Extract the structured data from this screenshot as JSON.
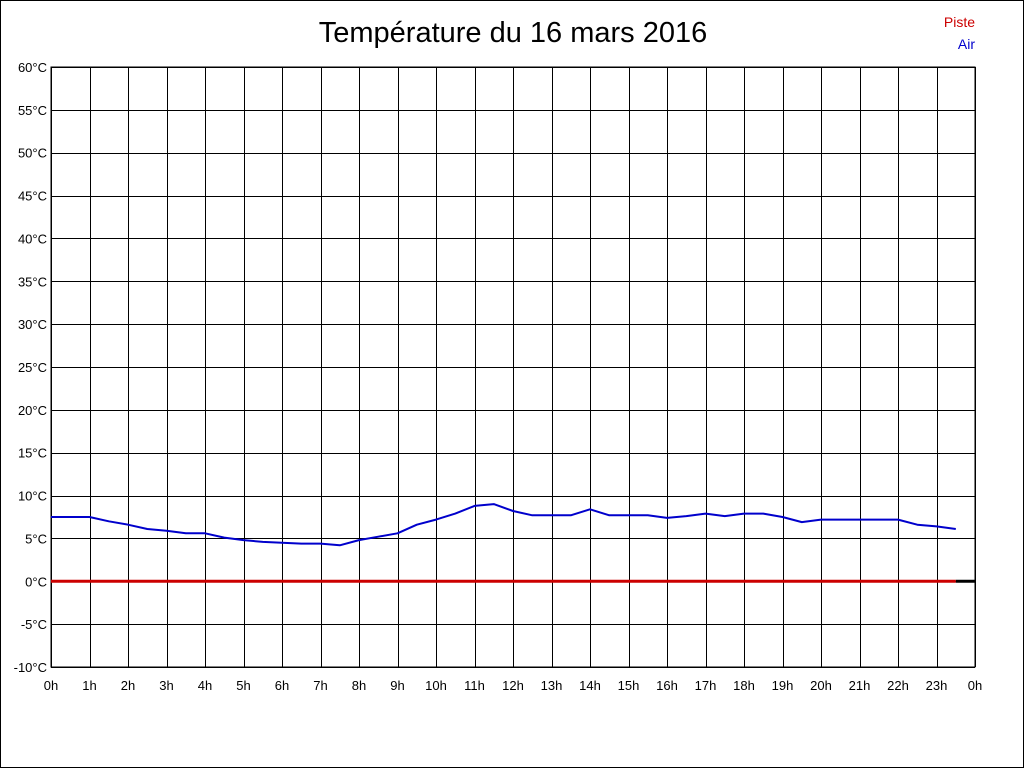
{
  "chart_data": {
    "type": "line",
    "title": "Température du 16 mars 2016",
    "xlabel": "",
    "ylabel": "",
    "x_tick_labels": [
      "0h",
      "1h",
      "2h",
      "3h",
      "4h",
      "5h",
      "6h",
      "7h",
      "8h",
      "9h",
      "10h",
      "11h",
      "12h",
      "13h",
      "14h",
      "15h",
      "16h",
      "17h",
      "18h",
      "19h",
      "20h",
      "21h",
      "22h",
      "23h",
      "0h"
    ],
    "y_ticks": [
      -10,
      -5,
      0,
      5,
      10,
      15,
      20,
      25,
      30,
      35,
      40,
      45,
      50,
      55,
      60
    ],
    "y_unit": "°C",
    "ylim": [
      -10,
      60
    ],
    "xlim": [
      0,
      24
    ],
    "grid": true,
    "legend_position": "top-right",
    "series": [
      {
        "name": "Piste",
        "color": "#cc0000",
        "x": [
          0,
          0.5,
          1,
          1.5,
          2,
          2.5,
          3,
          3.5,
          4,
          4.5,
          5,
          5.5,
          6,
          6.5,
          7,
          7.5,
          8,
          8.5,
          9,
          9.5,
          10,
          10.5,
          11,
          11.5,
          12,
          12.5,
          13,
          13.5,
          14,
          14.5,
          15,
          15.5,
          16,
          16.5,
          17,
          17.5,
          18,
          18.5,
          19,
          19.5,
          20,
          20.5,
          21,
          21.5,
          22,
          22.5,
          23,
          23.5
        ],
        "values": [
          0,
          0,
          0,
          0,
          0,
          0,
          0,
          0,
          0,
          0,
          0,
          0,
          0,
          0,
          0,
          0,
          0,
          0,
          0,
          0,
          0,
          0,
          0,
          0,
          0,
          0,
          0,
          0,
          0,
          0,
          0,
          0,
          0,
          0,
          0,
          0,
          0,
          0,
          0,
          0,
          0,
          0,
          0,
          0,
          0,
          0,
          0,
          0
        ]
      },
      {
        "name": "Air",
        "color": "#0000cc",
        "x": [
          0,
          0.5,
          1,
          1.5,
          2,
          2.5,
          3,
          3.5,
          4,
          4.5,
          5,
          5.5,
          6,
          6.5,
          7,
          7.5,
          8,
          8.5,
          9,
          9.5,
          10,
          10.5,
          11,
          11.5,
          12,
          12.5,
          13,
          13.5,
          14,
          14.5,
          15,
          15.5,
          16,
          16.5,
          17,
          17.5,
          18,
          18.5,
          19,
          19.5,
          20,
          20.5,
          21,
          21.5,
          22,
          22.5,
          23,
          23.5
        ],
        "values": [
          7.5,
          7.5,
          7.5,
          7.0,
          6.6,
          6.1,
          5.9,
          5.6,
          5.6,
          5.1,
          4.8,
          4.6,
          4.5,
          4.4,
          4.4,
          4.2,
          4.8,
          5.2,
          5.6,
          6.6,
          7.2,
          7.9,
          8.8,
          9.0,
          8.2,
          7.7,
          7.7,
          7.7,
          8.4,
          7.7,
          7.7,
          7.7,
          7.4,
          7.6,
          7.9,
          7.6,
          7.9,
          7.9,
          7.5,
          6.9,
          7.2,
          7.2,
          7.2,
          7.2,
          7.2,
          6.6,
          6.4,
          6.1
        ]
      }
    ]
  }
}
